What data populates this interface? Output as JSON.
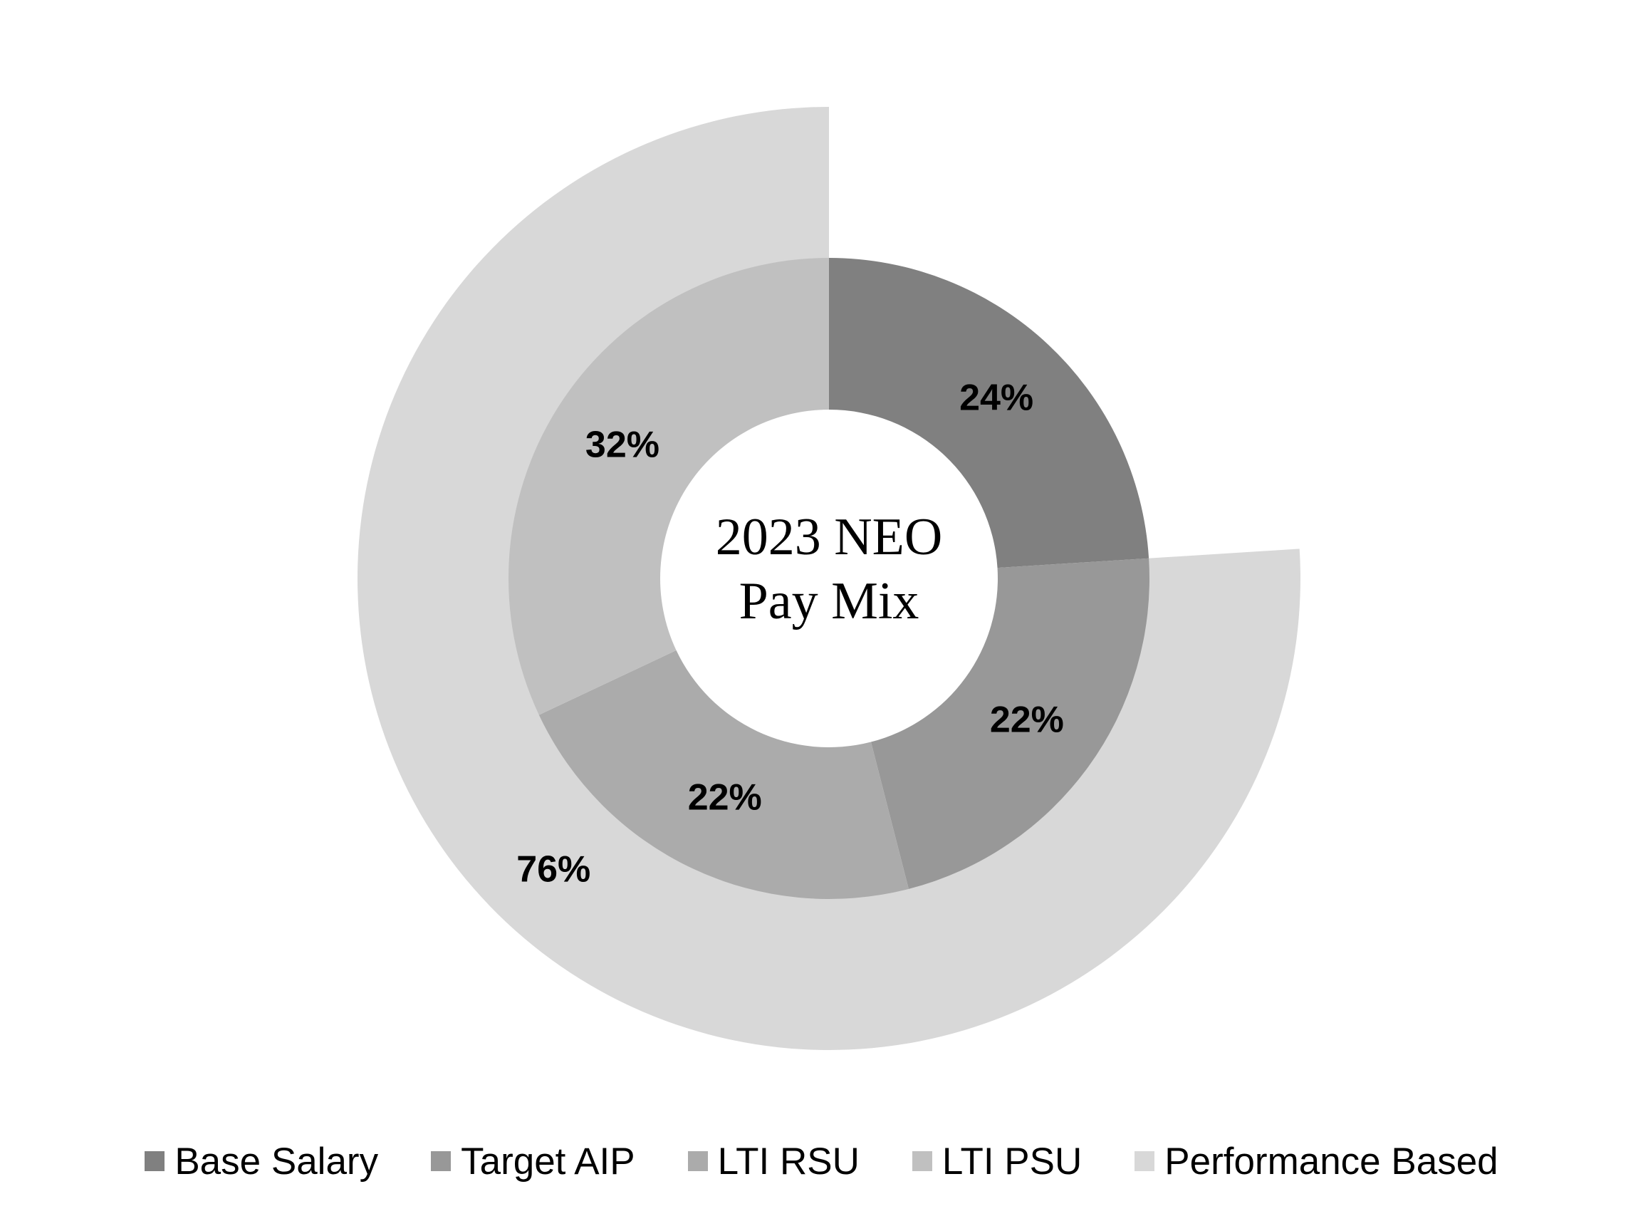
{
  "chart_data": {
    "type": "donut",
    "title_lines": [
      "2023 NEO",
      "Pay Mix"
    ],
    "inner_ring": [
      {
        "name": "Base Salary",
        "value": 24,
        "label": "24%",
        "color": "#808080"
      },
      {
        "name": "Target AIP",
        "value": 22,
        "label": "22%",
        "color": "#989898"
      },
      {
        "name": "LTI RSU",
        "value": 22,
        "label": "22%",
        "color": "#ababab"
      },
      {
        "name": "LTI PSU",
        "value": 32,
        "label": "32%",
        "color": "#c0c0c0"
      }
    ],
    "outer_ring": [
      {
        "name": "Performance Based",
        "value": 76,
        "label": "76%",
        "color": "#d8d8d8",
        "start_percent": 24
      }
    ],
    "legend": [
      {
        "name": "Base Salary",
        "color": "#808080"
      },
      {
        "name": "Target AIP",
        "color": "#989898"
      },
      {
        "name": "LTI RSU",
        "color": "#ababab"
      },
      {
        "name": "LTI PSU",
        "color": "#c0c0c0"
      },
      {
        "name": "Performance Based",
        "color": "#d8d8d8"
      }
    ],
    "legend_position": "bottom"
  }
}
